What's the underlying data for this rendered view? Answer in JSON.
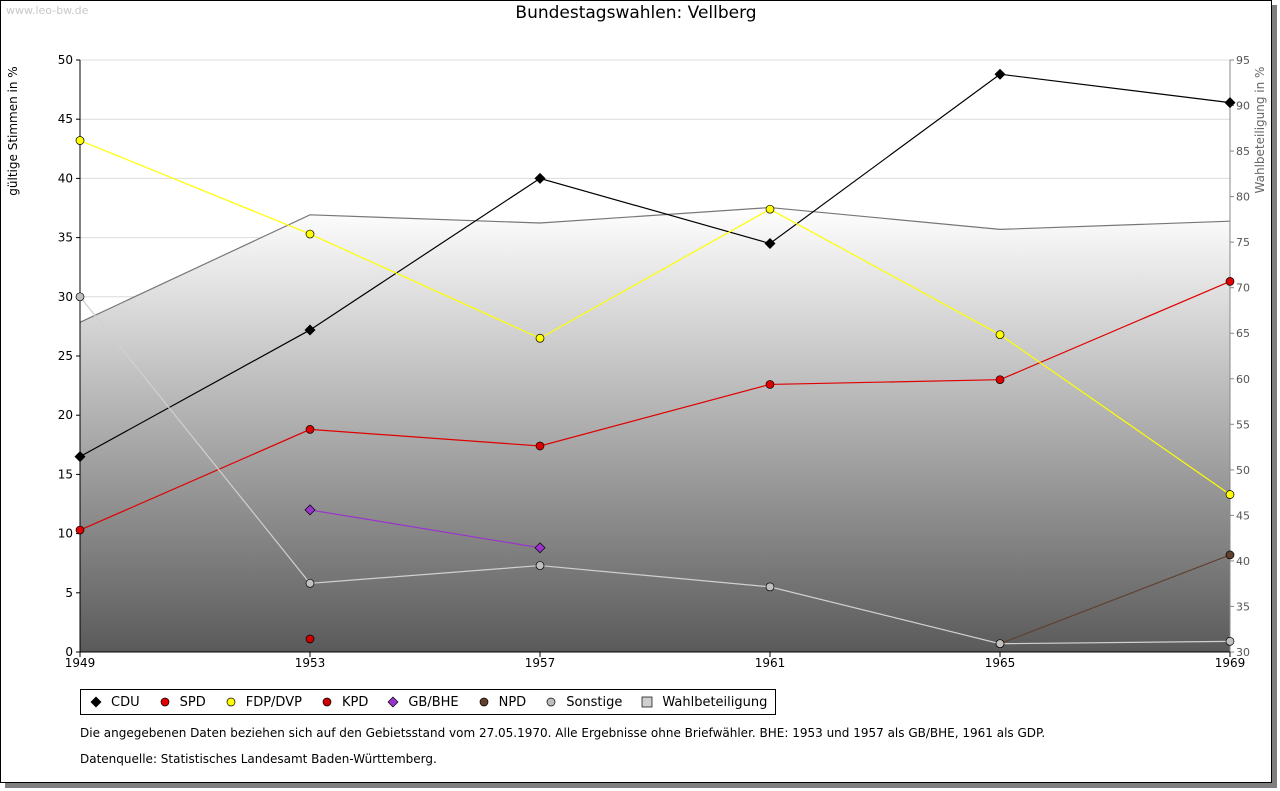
{
  "watermark": "www.leo-bw.de",
  "chart_data": {
    "type": "line",
    "title": "Bundestagswahlen: Vellberg",
    "ylabel": "gültige Stimmen in %",
    "y2label": "Wahlbeteiligung in %",
    "categories": [
      "1949",
      "1953",
      "1957",
      "1961",
      "1965",
      "1969"
    ],
    "ylim": [
      0,
      50
    ],
    "y2lim": [
      30,
      95
    ],
    "yticks": [
      0,
      5,
      10,
      15,
      20,
      25,
      30,
      35,
      40,
      45,
      50
    ],
    "y2ticks": [
      30,
      35,
      40,
      45,
      50,
      55,
      60,
      65,
      70,
      75,
      80,
      85,
      90,
      95
    ],
    "grid": true,
    "legend_position": "bottom",
    "series": [
      {
        "name": "CDU",
        "color": "#000000",
        "marker": "diamond",
        "values": [
          16.5,
          27.2,
          40.0,
          34.5,
          48.8,
          46.4
        ]
      },
      {
        "name": "SPD",
        "color": "#e00000",
        "marker": "circle",
        "values": [
          10.3,
          18.8,
          17.4,
          22.6,
          23.0,
          31.3
        ]
      },
      {
        "name": "FDP/DVP",
        "color": "#ffff00",
        "marker": "circle",
        "values": [
          43.2,
          35.3,
          26.5,
          37.4,
          26.8,
          13.3
        ]
      },
      {
        "name": "KPD",
        "color": "#cc0000",
        "marker": "circle",
        "values": [
          null,
          1.1,
          null,
          null,
          null,
          null
        ]
      },
      {
        "name": "GB/BHE",
        "color": "#9933cc",
        "marker": "diamond",
        "values": [
          null,
          12.0,
          8.8,
          null,
          null,
          null
        ]
      },
      {
        "name": "NPD",
        "color": "#604030",
        "marker": "circle",
        "values": [
          null,
          null,
          null,
          null,
          0.7,
          8.2
        ]
      },
      {
        "name": "Sonstige",
        "color": "#c0c0c0",
        "marker": "circle",
        "values": [
          30.0,
          5.8,
          7.3,
          5.5,
          0.7,
          0.9
        ]
      },
      {
        "name": "Wahlbeteiligung",
        "color": "#777777",
        "marker": "square",
        "axis": "right",
        "values": [
          66.2,
          78.0,
          77.1,
          78.8,
          76.4,
          77.3
        ]
      }
    ]
  },
  "notes": [
    "Die angegebenen Daten beziehen sich auf den Gebietsstand vom 27.05.1970. Alle Ergebnisse ohne Briefwähler. BHE: 1953 und 1957 als GB/BHE, 1961 als GDP.",
    "Datenquelle: Statistisches Landesamt Baden-Württemberg."
  ]
}
